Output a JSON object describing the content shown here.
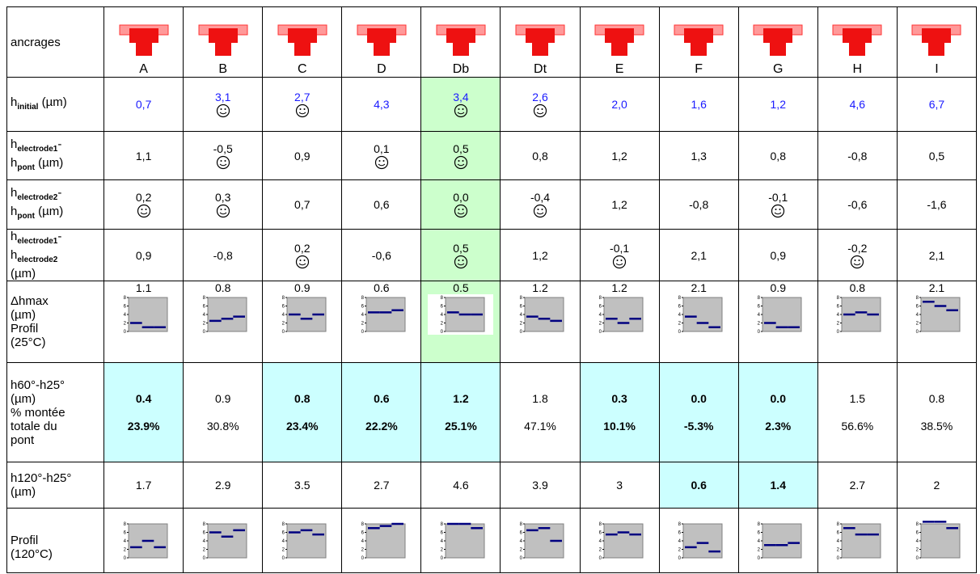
{
  "table": {
    "corner": "ancrages",
    "columns": [
      "A",
      "B",
      "C",
      "D",
      "Db",
      "Dt",
      "E",
      "F",
      "G",
      "H",
      "I"
    ],
    "profile_ticks": [
      0,
      2,
      4,
      6,
      8
    ],
    "profile_lim": [
      0,
      8
    ],
    "rows": [
      {
        "label": [
          {
            "t": "h"
          },
          {
            "t": "initial",
            "sub": true
          },
          {
            "t": " (µm)"
          }
        ],
        "color": "#1a1aff",
        "cells": [
          {
            "text": "0,7"
          },
          {
            "text": "3,1",
            "smiley": true
          },
          {
            "text": "2,7",
            "smiley": true
          },
          {
            "text": "4,3"
          },
          {
            "text": "3,4",
            "smiley": true,
            "bg": "#ccffcc"
          },
          {
            "text": "2,6",
            "smiley": true
          },
          {
            "text": "2,0"
          },
          {
            "text": "1,6"
          },
          {
            "text": "1,2"
          },
          {
            "text": "4,6"
          },
          {
            "text": "6,7"
          }
        ]
      },
      {
        "label": [
          {
            "t": "h"
          },
          {
            "t": "electrode1",
            "sub": true
          },
          {
            "t": "-\nh"
          },
          {
            "t": "pont",
            "sub": true
          },
          {
            "t": " (µm)"
          }
        ],
        "cells": [
          {
            "text": "1,1"
          },
          {
            "text": "-0,5",
            "smiley": true
          },
          {
            "text": "0,9"
          },
          {
            "text": "0,1",
            "smiley": true
          },
          {
            "text": "0,5",
            "smiley": true,
            "bg": "#ccffcc"
          },
          {
            "text": "0,8"
          },
          {
            "text": "1,2"
          },
          {
            "text": "1,3"
          },
          {
            "text": "0,8"
          },
          {
            "text": "-0,8"
          },
          {
            "text": "0,5"
          }
        ]
      },
      {
        "label": [
          {
            "t": "h"
          },
          {
            "t": "electrode2",
            "sub": true
          },
          {
            "t": "-\nh"
          },
          {
            "t": "pont",
            "sub": true
          },
          {
            "t": " (µm)"
          }
        ],
        "cells": [
          {
            "text": "0,2",
            "smiley": true
          },
          {
            "text": "0,3",
            "smiley": true
          },
          {
            "text": "0,7"
          },
          {
            "text": "0,6"
          },
          {
            "text": "0,0",
            "smiley": true,
            "bg": "#ccffcc"
          },
          {
            "text": "-0,4",
            "smiley": true
          },
          {
            "text": "1,2"
          },
          {
            "text": "-0,8"
          },
          {
            "text": "-0,1",
            "smiley": true
          },
          {
            "text": "-0,6"
          },
          {
            "text": "-1,6"
          }
        ]
      },
      {
        "label": [
          {
            "t": "h"
          },
          {
            "t": "electrode1",
            "sub": true
          },
          {
            "t": "-\nh"
          },
          {
            "t": "electrode2",
            "sub": true
          },
          {
            "t": "\n(µm)"
          }
        ],
        "cells": [
          {
            "text": "0,9"
          },
          {
            "text": "-0,8"
          },
          {
            "text": "0,2",
            "smiley": true
          },
          {
            "text": "-0,6"
          },
          {
            "text": "0,5",
            "smiley": true,
            "bg": "#ccffcc"
          },
          {
            "text": "1,2"
          },
          {
            "text": "-0,1",
            "smiley": true
          },
          {
            "text": "2,1"
          },
          {
            "text": "0,9"
          },
          {
            "text": "-0,2",
            "smiley": true
          },
          {
            "text": "2,1"
          }
        ]
      },
      {
        "label": [
          {
            "t": "Δhmax\n(µm)\nProfil\n(25°C)"
          }
        ],
        "cells": [
          {
            "text": "1.1",
            "profile": [
              2,
              1,
              1
            ]
          },
          {
            "text": "0.8",
            "profile": [
              2.5,
              3,
              3.5
            ]
          },
          {
            "text": "0.9",
            "profile": [
              4,
              3,
              4
            ]
          },
          {
            "text": "0.6",
            "profile": [
              4.5,
              4.5,
              5
            ]
          },
          {
            "text": "0.5",
            "profile": [
              4.5,
              4,
              4
            ],
            "bg": "#ccffcc"
          },
          {
            "text": "1.2",
            "profile": [
              3.5,
              3,
              2.5
            ]
          },
          {
            "text": "1.2",
            "profile": [
              3,
              2,
              3
            ]
          },
          {
            "text": "2.1",
            "profile": [
              3.5,
              2,
              1
            ]
          },
          {
            "text": "0.9",
            "profile": [
              2,
              1,
              1
            ]
          },
          {
            "text": "0.8",
            "profile": [
              4,
              4.5,
              4
            ]
          },
          {
            "text": "2.1",
            "profile": [
              7,
              6,
              5
            ]
          }
        ]
      },
      {
        "label": [
          {
            "t": "h60°-h25°\n(µm)\n% montée\ntotale du\npont"
          }
        ],
        "cells": [
          {
            "text": "0.4",
            "pct": "23.9%",
            "bold": true,
            "bg": "#ccffff"
          },
          {
            "text": "0.9",
            "pct": "30.8%"
          },
          {
            "text": "0.8",
            "pct": "23.4%",
            "bold": true,
            "bg": "#ccffff"
          },
          {
            "text": "0.6",
            "pct": "22.2%",
            "bold": true,
            "bg": "#ccffff"
          },
          {
            "text": "1.2",
            "pct": "25.1%",
            "bold": true,
            "bg": "#ccffff"
          },
          {
            "text": "1.8",
            "pct": "47.1%"
          },
          {
            "text": "0.3",
            "pct": "10.1%",
            "bold": true,
            "bg": "#ccffff"
          },
          {
            "text": "0.0",
            "pct": "-5.3%",
            "bold": true,
            "bg": "#ccffff"
          },
          {
            "text": "0.0",
            "pct": "2.3%",
            "bold": true,
            "bg": "#ccffff"
          },
          {
            "text": "1.5",
            "pct": "56.6%"
          },
          {
            "text": "0.8",
            "pct": "38.5%"
          }
        ]
      },
      {
        "label": [
          {
            "t": "h120°-h25°\n(µm)"
          }
        ],
        "cells": [
          {
            "text": "1.7"
          },
          {
            "text": "2.9"
          },
          {
            "text": "3.5"
          },
          {
            "text": "2.7"
          },
          {
            "text": "4.6"
          },
          {
            "text": "3.9"
          },
          {
            "text": "3"
          },
          {
            "text": "0.6",
            "bold": true,
            "bg": "#ccffff"
          },
          {
            "text": "1.4",
            "bold": true,
            "bg": "#ccffff"
          },
          {
            "text": "2.7"
          },
          {
            "text": "2"
          }
        ]
      },
      {
        "label": [
          {
            "t": "\nProfil\n(120°C)"
          }
        ],
        "cells": [
          {
            "profile": [
              2.5,
              4,
              2.5
            ]
          },
          {
            "profile": [
              6,
              5,
              6.5
            ]
          },
          {
            "profile": [
              6,
              6.5,
              5.5
            ]
          },
          {
            "profile": [
              7,
              7.5,
              8
            ]
          },
          {
            "profile": [
              8,
              8,
              7
            ]
          },
          {
            "profile": [
              6.5,
              7,
              4
            ]
          },
          {
            "profile": [
              5.5,
              6,
              5.5
            ]
          },
          {
            "profile": [
              2.5,
              3.5,
              1.5
            ]
          },
          {
            "profile": [
              3,
              3,
              3.5
            ]
          },
          {
            "profile": [
              7,
              5.5,
              5.5
            ]
          },
          {
            "profile": [
              8.5,
              8.5,
              7
            ]
          }
        ]
      }
    ]
  }
}
